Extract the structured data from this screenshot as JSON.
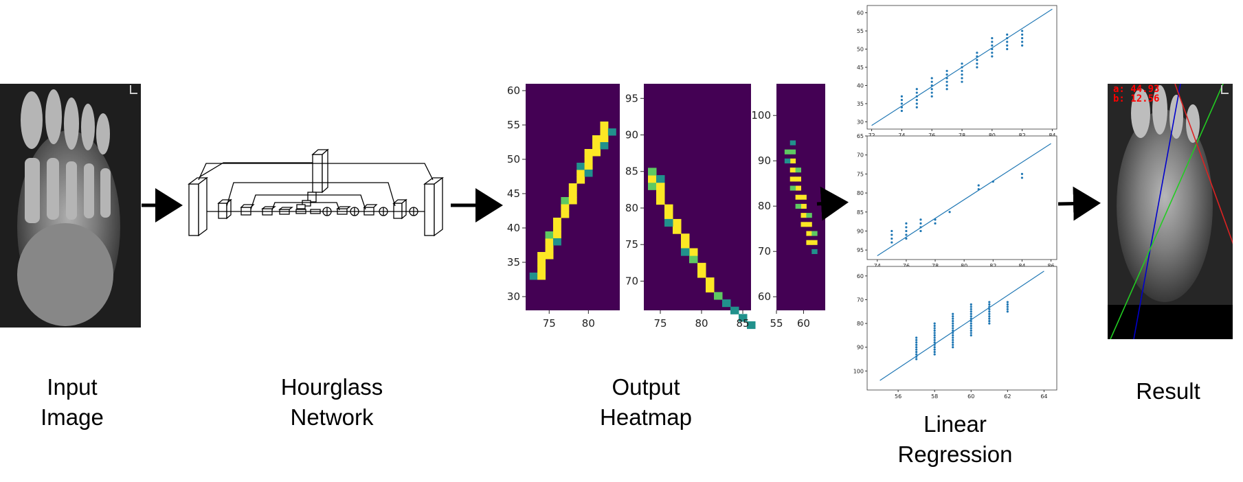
{
  "captions": {
    "input": [
      "Input",
      "Image"
    ],
    "network": [
      "Hourglass",
      "Network"
    ],
    "heatmap": [
      "Output",
      "Heatmap"
    ],
    "regression": [
      "Linear",
      "Regression"
    ],
    "result": [
      "Result"
    ]
  },
  "result_overlay": {
    "a_label": "a: 44.93",
    "b_label": "b: 12.56",
    "text_color": "#ff0000",
    "line_colors": {
      "blue": "#0000cc",
      "green": "#22cc22",
      "red": "#dd2222"
    }
  },
  "heatmap_colors": {
    "background": "#440154",
    "teal": "#21918c",
    "green": "#5ec962",
    "yellow": "#fde725"
  },
  "heatmaps": [
    {
      "x_ticks": [
        "75",
        "80"
      ],
      "y_ticks": [
        "30",
        "35",
        "40",
        "45",
        "50",
        "55",
        "60"
      ],
      "xlim": [
        72,
        84
      ],
      "ylim": [
        61,
        28
      ],
      "points": [
        [
          73,
          33,
          0.6
        ],
        [
          74,
          33,
          1
        ],
        [
          74,
          34,
          1
        ],
        [
          74,
          35,
          1
        ],
        [
          74,
          36,
          1
        ],
        [
          75,
          36,
          1
        ],
        [
          75,
          37,
          1
        ],
        [
          75,
          38,
          1
        ],
        [
          75,
          39,
          0.8
        ],
        [
          76,
          39,
          1
        ],
        [
          76,
          40,
          1
        ],
        [
          76,
          41,
          1
        ],
        [
          77,
          42,
          1
        ],
        [
          77,
          43,
          1
        ],
        [
          77,
          44,
          0.8
        ],
        [
          78,
          44,
          1
        ],
        [
          78,
          45,
          1
        ],
        [
          78,
          46,
          1
        ],
        [
          79,
          47,
          1
        ],
        [
          79,
          48,
          1
        ],
        [
          79,
          49,
          0.6
        ],
        [
          80,
          49,
          1
        ],
        [
          80,
          50,
          1
        ],
        [
          80,
          51,
          1
        ],
        [
          81,
          51,
          1
        ],
        [
          81,
          52,
          1
        ],
        [
          81,
          53,
          1
        ],
        [
          82,
          53,
          1
        ],
        [
          82,
          54,
          1
        ],
        [
          82,
          55,
          1
        ],
        [
          83,
          54,
          0.6
        ],
        [
          76,
          38,
          0.5
        ],
        [
          80,
          48,
          0.4
        ],
        [
          82,
          52,
          0.5
        ]
      ]
    },
    {
      "x_ticks": [
        "75",
        "80",
        "85"
      ],
      "y_ticks": [
        "70",
        "75",
        "80",
        "85",
        "90",
        "95"
      ],
      "xlim": [
        73,
        86
      ],
      "ylim": [
        97,
        66
      ],
      "points": [
        [
          86,
          64,
          0.5
        ],
        [
          85,
          65,
          0.5
        ],
        [
          84,
          66,
          0.6
        ],
        [
          83,
          67,
          0.6
        ],
        [
          82,
          68,
          0.7
        ],
        [
          81,
          69,
          1
        ],
        [
          81,
          70,
          1
        ],
        [
          80,
          71,
          1
        ],
        [
          80,
          72,
          1
        ],
        [
          79,
          73,
          0.7
        ],
        [
          79,
          74,
          1
        ],
        [
          78,
          75,
          1
        ],
        [
          78,
          76,
          1
        ],
        [
          77,
          77,
          1
        ],
        [
          77,
          78,
          1
        ],
        [
          76,
          79,
          1
        ],
        [
          76,
          80,
          1
        ],
        [
          75,
          81,
          1
        ],
        [
          75,
          82,
          1
        ],
        [
          74,
          83,
          0.8
        ],
        [
          75,
          83,
          1
        ],
        [
          74,
          84,
          1
        ],
        [
          74,
          85,
          0.7
        ],
        [
          76,
          78,
          0.5
        ],
        [
          78,
          74,
          0.4
        ],
        [
          73,
          86,
          0.4
        ],
        [
          75,
          84,
          0.5
        ]
      ]
    },
    {
      "x_ticks": [
        "55",
        "60"
      ],
      "y_ticks": [
        "60",
        "70",
        "80",
        "90",
        "100"
      ],
      "xlim": [
        55,
        64
      ],
      "ylim": [
        107,
        57
      ],
      "points": [
        [
          62,
          70,
          0.6
        ],
        [
          62,
          72,
          1
        ],
        [
          61,
          72,
          1
        ],
        [
          61,
          74,
          1
        ],
        [
          62,
          74,
          0.8
        ],
        [
          61,
          76,
          1
        ],
        [
          60,
          76,
          1
        ],
        [
          60,
          78,
          1
        ],
        [
          61,
          78,
          0.9
        ],
        [
          60,
          80,
          1
        ],
        [
          59,
          80,
          0.8
        ],
        [
          59,
          82,
          1
        ],
        [
          60,
          82,
          1
        ],
        [
          59,
          84,
          1
        ],
        [
          58,
          84,
          0.7
        ],
        [
          59,
          86,
          1
        ],
        [
          58,
          86,
          1
        ],
        [
          58,
          88,
          1
        ],
        [
          59,
          88,
          0.8
        ],
        [
          58,
          90,
          1
        ],
        [
          57,
          90,
          0.6
        ],
        [
          58,
          92,
          0.9
        ],
        [
          57,
          92,
          0.7
        ],
        [
          58,
          94,
          0.5
        ]
      ]
    }
  ],
  "chart_data": [
    {
      "type": "scatter",
      "x_ticks": [
        "72",
        "74",
        "76",
        "78",
        "80",
        "82",
        "84"
      ],
      "y_ticks": [
        "30",
        "35",
        "40",
        "45",
        "50",
        "55",
        "60"
      ],
      "xlim": [
        71.7,
        84.3
      ],
      "ylim": [
        62,
        28
      ],
      "points": [
        [
          74,
          33
        ],
        [
          74,
          34
        ],
        [
          74,
          35
        ],
        [
          74,
          36
        ],
        [
          74,
          37
        ],
        [
          75,
          34
        ],
        [
          75,
          35
        ],
        [
          75,
          36
        ],
        [
          75,
          37
        ],
        [
          75,
          38
        ],
        [
          75,
          39
        ],
        [
          76,
          37
        ],
        [
          76,
          38
        ],
        [
          76,
          39
        ],
        [
          76,
          40
        ],
        [
          76,
          41
        ],
        [
          76,
          42
        ],
        [
          77,
          39
        ],
        [
          77,
          40
        ],
        [
          77,
          41
        ],
        [
          77,
          42
        ],
        [
          77,
          43
        ],
        [
          77,
          44
        ],
        [
          78,
          41
        ],
        [
          78,
          42
        ],
        [
          78,
          43
        ],
        [
          78,
          44
        ],
        [
          78,
          45
        ],
        [
          78,
          46
        ],
        [
          79,
          45
        ],
        [
          79,
          46
        ],
        [
          79,
          47
        ],
        [
          79,
          48
        ],
        [
          79,
          49
        ],
        [
          80,
          48
        ],
        [
          80,
          49
        ],
        [
          80,
          50
        ],
        [
          80,
          51
        ],
        [
          80,
          52
        ],
        [
          80,
          53
        ],
        [
          81,
          50
        ],
        [
          81,
          51
        ],
        [
          81,
          52
        ],
        [
          81,
          53
        ],
        [
          81,
          54
        ],
        [
          82,
          51
        ],
        [
          82,
          52
        ],
        [
          82,
          53
        ],
        [
          82,
          54
        ],
        [
          82,
          55
        ]
      ],
      "fit_line": [
        [
          72,
          29
        ],
        [
          84,
          61
        ]
      ],
      "line_color": "#1f77b4"
    },
    {
      "type": "scatter",
      "x_ticks": [
        "74",
        "76",
        "78",
        "80",
        "82",
        "84",
        "86"
      ],
      "y_ticks": [
        "65",
        "70",
        "75",
        "80",
        "85",
        "90",
        "95"
      ],
      "xlim": [
        73.3,
        86.4
      ],
      "ylim": [
        65,
        97.5
      ],
      "points": [
        [
          75,
          90
        ],
        [
          75,
          91
        ],
        [
          75,
          92
        ],
        [
          75,
          93
        ],
        [
          76,
          88
        ],
        [
          76,
          89
        ],
        [
          76,
          90
        ],
        [
          76,
          91
        ],
        [
          76,
          92
        ],
        [
          77,
          87
        ],
        [
          77,
          88
        ],
        [
          77,
          89
        ],
        [
          77,
          90
        ],
        [
          78,
          87
        ],
        [
          78,
          88
        ],
        [
          79,
          85
        ],
        [
          81,
          78
        ],
        [
          81,
          79
        ],
        [
          82,
          77
        ],
        [
          84,
          75
        ],
        [
          84,
          76
        ]
      ],
      "fit_line": [
        [
          74,
          96.5
        ],
        [
          86,
          67
        ]
      ],
      "line_color": "#1f77b4"
    },
    {
      "type": "scatter",
      "x_ticks": [
        "56",
        "58",
        "60",
        "62",
        "64"
      ],
      "y_ticks": [
        "60",
        "70",
        "80",
        "90",
        "100"
      ],
      "xlim": [
        54.3,
        64.7
      ],
      "ylim": [
        56,
        108
      ],
      "points": [
        [
          57,
          86
        ],
        [
          57,
          87
        ],
        [
          57,
          88
        ],
        [
          57,
          89
        ],
        [
          57,
          90
        ],
        [
          57,
          91
        ],
        [
          57,
          92
        ],
        [
          57,
          93
        ],
        [
          57,
          94
        ],
        [
          57,
          95
        ],
        [
          58,
          80
        ],
        [
          58,
          81
        ],
        [
          58,
          82
        ],
        [
          58,
          83
        ],
        [
          58,
          84
        ],
        [
          58,
          85
        ],
        [
          58,
          86
        ],
        [
          58,
          87
        ],
        [
          58,
          88
        ],
        [
          58,
          89
        ],
        [
          58,
          90
        ],
        [
          58,
          91
        ],
        [
          58,
          92
        ],
        [
          58,
          93
        ],
        [
          59,
          76
        ],
        [
          59,
          77
        ],
        [
          59,
          78
        ],
        [
          59,
          79
        ],
        [
          59,
          80
        ],
        [
          59,
          81
        ],
        [
          59,
          82
        ],
        [
          59,
          83
        ],
        [
          59,
          84
        ],
        [
          59,
          85
        ],
        [
          59,
          86
        ],
        [
          59,
          87
        ],
        [
          59,
          88
        ],
        [
          59,
          89
        ],
        [
          59,
          90
        ],
        [
          60,
          72
        ],
        [
          60,
          73
        ],
        [
          60,
          74
        ],
        [
          60,
          75
        ],
        [
          60,
          76
        ],
        [
          60,
          77
        ],
        [
          60,
          78
        ],
        [
          60,
          79
        ],
        [
          60,
          80
        ],
        [
          60,
          81
        ],
        [
          60,
          82
        ],
        [
          60,
          83
        ],
        [
          60,
          84
        ],
        [
          60,
          85
        ],
        [
          61,
          71
        ],
        [
          61,
          72
        ],
        [
          61,
          73
        ],
        [
          61,
          74
        ],
        [
          61,
          75
        ],
        [
          61,
          76
        ],
        [
          61,
          77
        ],
        [
          61,
          78
        ],
        [
          61,
          79
        ],
        [
          61,
          80
        ],
        [
          62,
          71
        ],
        [
          62,
          72
        ],
        [
          62,
          73
        ],
        [
          62,
          74
        ],
        [
          62,
          75
        ]
      ],
      "fit_line": [
        [
          55,
          104
        ],
        [
          64,
          58
        ]
      ],
      "line_color": "#1f77b4"
    }
  ]
}
